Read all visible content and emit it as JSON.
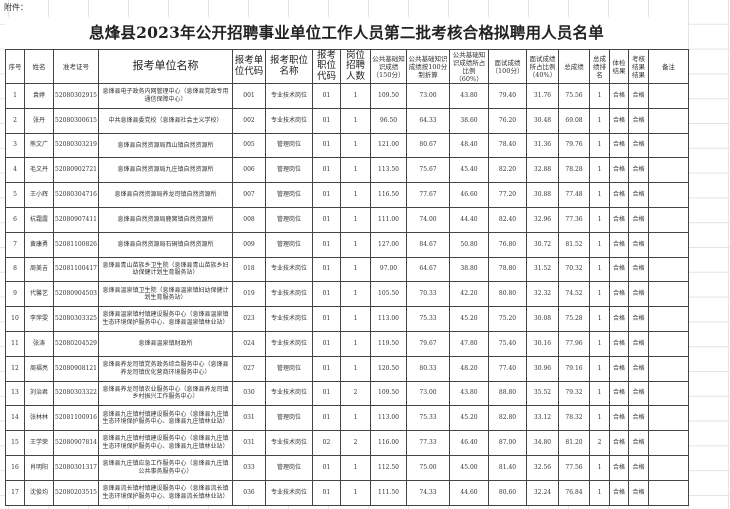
{
  "attachment_label": "附件：",
  "title": "息烽县2023年公开招聘事业单位工作人员第二批考核合格拟聘用人员名单",
  "columns": [
    "序号",
    "姓名",
    "准考证号",
    "报考单位名称",
    "报考单位代码",
    "报考职位名称",
    "报考职位代码",
    "岗位招聘人数",
    "公共基础知识成绩（150分）",
    "公共基础知识成绩按100分制折算",
    "公共基础知识成绩所占比例（60%）",
    "面试成绩（100分）",
    "面试成绩所占比例（40%）",
    "总成绩",
    "总成绩排名",
    "体检结果",
    "考核结果结果",
    "备注"
  ],
  "rows": [
    [
      "1",
      "袁婷",
      "52080302915",
      "息烽县电子政务内网管理中心（息烽县党政专用通信保障中心）",
      "001",
      "专业技术岗位",
      "01",
      "1",
      "109.50",
      "73.00",
      "43.80",
      "79.40",
      "31.76",
      "75.56",
      "1",
      "合格",
      "合格",
      ""
    ],
    [
      "2",
      "张丹",
      "52080300615",
      "中共息烽县委党校（息烽县社会主义学校）",
      "002",
      "专业技术岗位",
      "01",
      "1",
      "96.50",
      "64.33",
      "38.60",
      "76.20",
      "30.48",
      "69.08",
      "1",
      "合格",
      "合格",
      ""
    ],
    [
      "3",
      "熊文广",
      "52080303219",
      "息烽县自然资源局西山镇自然资源所",
      "005",
      "管理岗位",
      "01",
      "1",
      "121.00",
      "80.67",
      "48.40",
      "78.40",
      "31.36",
      "79.76",
      "1",
      "合格",
      "合格",
      ""
    ],
    [
      "4",
      "毛文丹",
      "52080902721",
      "息烽县自然资源局九庄镇自然资源所",
      "006",
      "管理岗位",
      "01",
      "1",
      "113.50",
      "75.67",
      "45.40",
      "82.20",
      "32.88",
      "78.28",
      "1",
      "合格",
      "合格",
      ""
    ],
    [
      "5",
      "王小辉",
      "52080304716",
      "息烽县自然资源局养龙司镇自然资源所",
      "007",
      "管理岗位",
      "01",
      "1",
      "116.50",
      "77.67",
      "46.60",
      "77.20",
      "30.88",
      "77.48",
      "1",
      "合格",
      "合格",
      ""
    ],
    [
      "6",
      "杭霜露",
      "52080907411",
      "息烽县自然资源局鹿窝镇自然资源所",
      "008",
      "管理岗位",
      "01",
      "1",
      "111.00",
      "74.00",
      "44.40",
      "82.40",
      "32.96",
      "77.36",
      "1",
      "合格",
      "合格",
      ""
    ],
    [
      "7",
      "黄康勇",
      "52081100826",
      "息烽县自然资源局石硐镇自然资源所",
      "009",
      "管理岗位",
      "01",
      "1",
      "127.00",
      "84.67",
      "50.80",
      "76.80",
      "30.72",
      "81.52",
      "1",
      "合格",
      "合格",
      ""
    ],
    [
      "8",
      "周美吉",
      "52081100417",
      "息烽县青山苗族乡卫生院（息烽县青山苗族乡妇幼保健计划生育服务站）",
      "018",
      "专业技术岗位",
      "01",
      "1",
      "97.00",
      "64.67",
      "38.80",
      "78.80",
      "31.52",
      "70.32",
      "1",
      "合格",
      "合格",
      ""
    ],
    [
      "9",
      "代馨艺",
      "52080904503",
      "息烽县温泉镇卫生院（息烽县温泉镇妇幼保健计划生育服务站）",
      "019",
      "专业技术岗位",
      "01",
      "1",
      "105.50",
      "70.33",
      "42.20",
      "80.80",
      "32.32",
      "74.52",
      "1",
      "合格",
      "合格",
      ""
    ],
    [
      "10",
      "李萍雯",
      "52080303325",
      "息烽县温泉镇村镇建设服务中心（息烽县温泉镇生态环境保护服务中心、息烽县温泉镇林业站）",
      "023",
      "专业技术岗位",
      "01",
      "1",
      "113.00",
      "75.33",
      "45.20",
      "75.20",
      "30.08",
      "75.28",
      "1",
      "合格",
      "合格",
      ""
    ],
    [
      "11",
      "张涛",
      "52080204529",
      "息烽县温泉镇财政所",
      "024",
      "专业技术岗位",
      "01",
      "1",
      "119.50",
      "79.67",
      "47.80",
      "75.40",
      "30.16",
      "77.96",
      "1",
      "合格",
      "合格",
      ""
    ],
    [
      "12",
      "周福亮",
      "52080908121",
      "息烽县养龙司镇党务政务综合服务中心（息烽县养龙司镇优化营商环境服务中心）",
      "027",
      "管理岗位",
      "01",
      "1",
      "120.50",
      "80.33",
      "48.20",
      "77.40",
      "30.96",
      "79.16",
      "1",
      "合格",
      "合格",
      ""
    ],
    [
      "13",
      "刘治君",
      "52080303322",
      "息烽县养龙司镇农业服务中心（息烽县养龙司镇乡村振兴工作服务中心）",
      "030",
      "专业技术岗位",
      "01",
      "2",
      "109.50",
      "73.00",
      "43.80",
      "88.80",
      "35.52",
      "79.32",
      "1",
      "合格",
      "合格",
      ""
    ],
    [
      "14",
      "张林林",
      "52081100916",
      "息烽县九庄镇村镇建设服务中心（息烽县九庄镇生态环境保护服务中心、息烽县九庄镇林业站）",
      "031",
      "管理岗位",
      "01",
      "1",
      "113.00",
      "75.33",
      "45.20",
      "82.80",
      "33.12",
      "78.32",
      "1",
      "合格",
      "合格",
      ""
    ],
    [
      "15",
      "王学荣",
      "52080907814",
      "息烽县九庄镇村镇建设服务中心（息烽县九庄镇生态环境保护服务中心、息烽县九庄镇林业站）",
      "031",
      "专业技术岗位",
      "02",
      "2",
      "116.00",
      "77.33",
      "46.40",
      "87.00",
      "34.80",
      "81.20",
      "2",
      "合格",
      "合格",
      ""
    ],
    [
      "16",
      "肖明阳",
      "52080301317",
      "息烽县九庄镇应急工作服务中心（息烽县九庄镇公共事务服务中心）",
      "033",
      "管理岗位",
      "01",
      "1",
      "112.50",
      "75.00",
      "45.00",
      "81.40",
      "32.56",
      "77.56",
      "1",
      "合格",
      "合格",
      ""
    ],
    [
      "17",
      "沈俊均",
      "52080203515",
      "息烽县流长镇村镇建设服务中心（息烽县流长镇生态环境保护服务中心、息烽县流长镇林业站）",
      "036",
      "专业技术岗位",
      "01",
      "1",
      "111.50",
      "74.33",
      "44.60",
      "80.60",
      "32.24",
      "76.84",
      "1",
      "合格",
      "合格",
      ""
    ]
  ]
}
